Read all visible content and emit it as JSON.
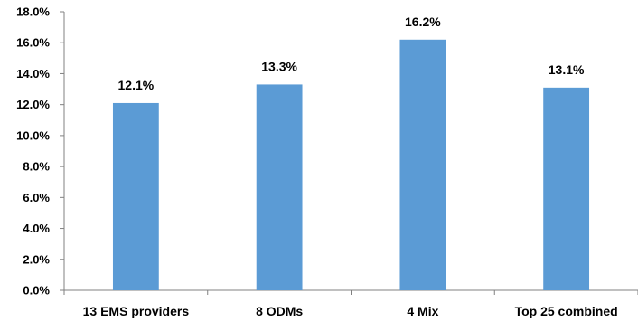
{
  "chart_data": {
    "type": "bar",
    "categories": [
      "13 EMS providers",
      "8 ODMs",
      "4 Mix",
      "Top 25 combined"
    ],
    "values": [
      12.1,
      13.3,
      16.2,
      13.1
    ],
    "data_labels": [
      "12.1%",
      "13.3%",
      "16.2%",
      "13.1%"
    ],
    "title": "",
    "xlabel": "",
    "ylabel": "",
    "ylim": [
      0,
      18
    ],
    "yticks": [
      0,
      2,
      4,
      6,
      8,
      10,
      12,
      14,
      16,
      18
    ],
    "ytick_labels": [
      "0.0%",
      "2.0%",
      "4.0%",
      "6.0%",
      "8.0%",
      "10.0%",
      "12.0%",
      "14.0%",
      "16.0%",
      "18.0%"
    ],
    "grid": false,
    "legend": "none",
    "colors": {
      "bar": "#5b9bd5",
      "axis": "#808080",
      "text": "#000000"
    }
  }
}
